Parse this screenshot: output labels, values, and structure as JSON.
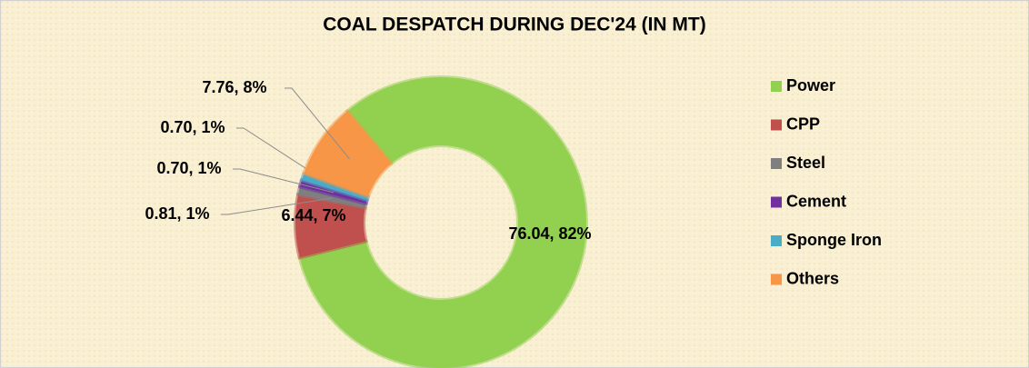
{
  "chart_data": {
    "type": "donut",
    "title": "COAL DESPATCH DURING DEC'24 (IN MT)",
    "categories": [
      "Power",
      "CPP",
      "Steel",
      "Cement",
      "Sponge Iron",
      "Others"
    ],
    "values": [
      76.04,
      6.44,
      0.81,
      0.7,
      0.7,
      7.76
    ],
    "value_labels": [
      "76.04, 82%",
      "6.44, 7%",
      "0.81, 1%",
      "0.70, 1%",
      "0.70, 1%",
      "7.76, 8%"
    ],
    "colors": [
      "#92d050",
      "#c0504d",
      "#7f7f7f",
      "#7030a0",
      "#4bacc6",
      "#f79646"
    ],
    "legend": "right"
  }
}
